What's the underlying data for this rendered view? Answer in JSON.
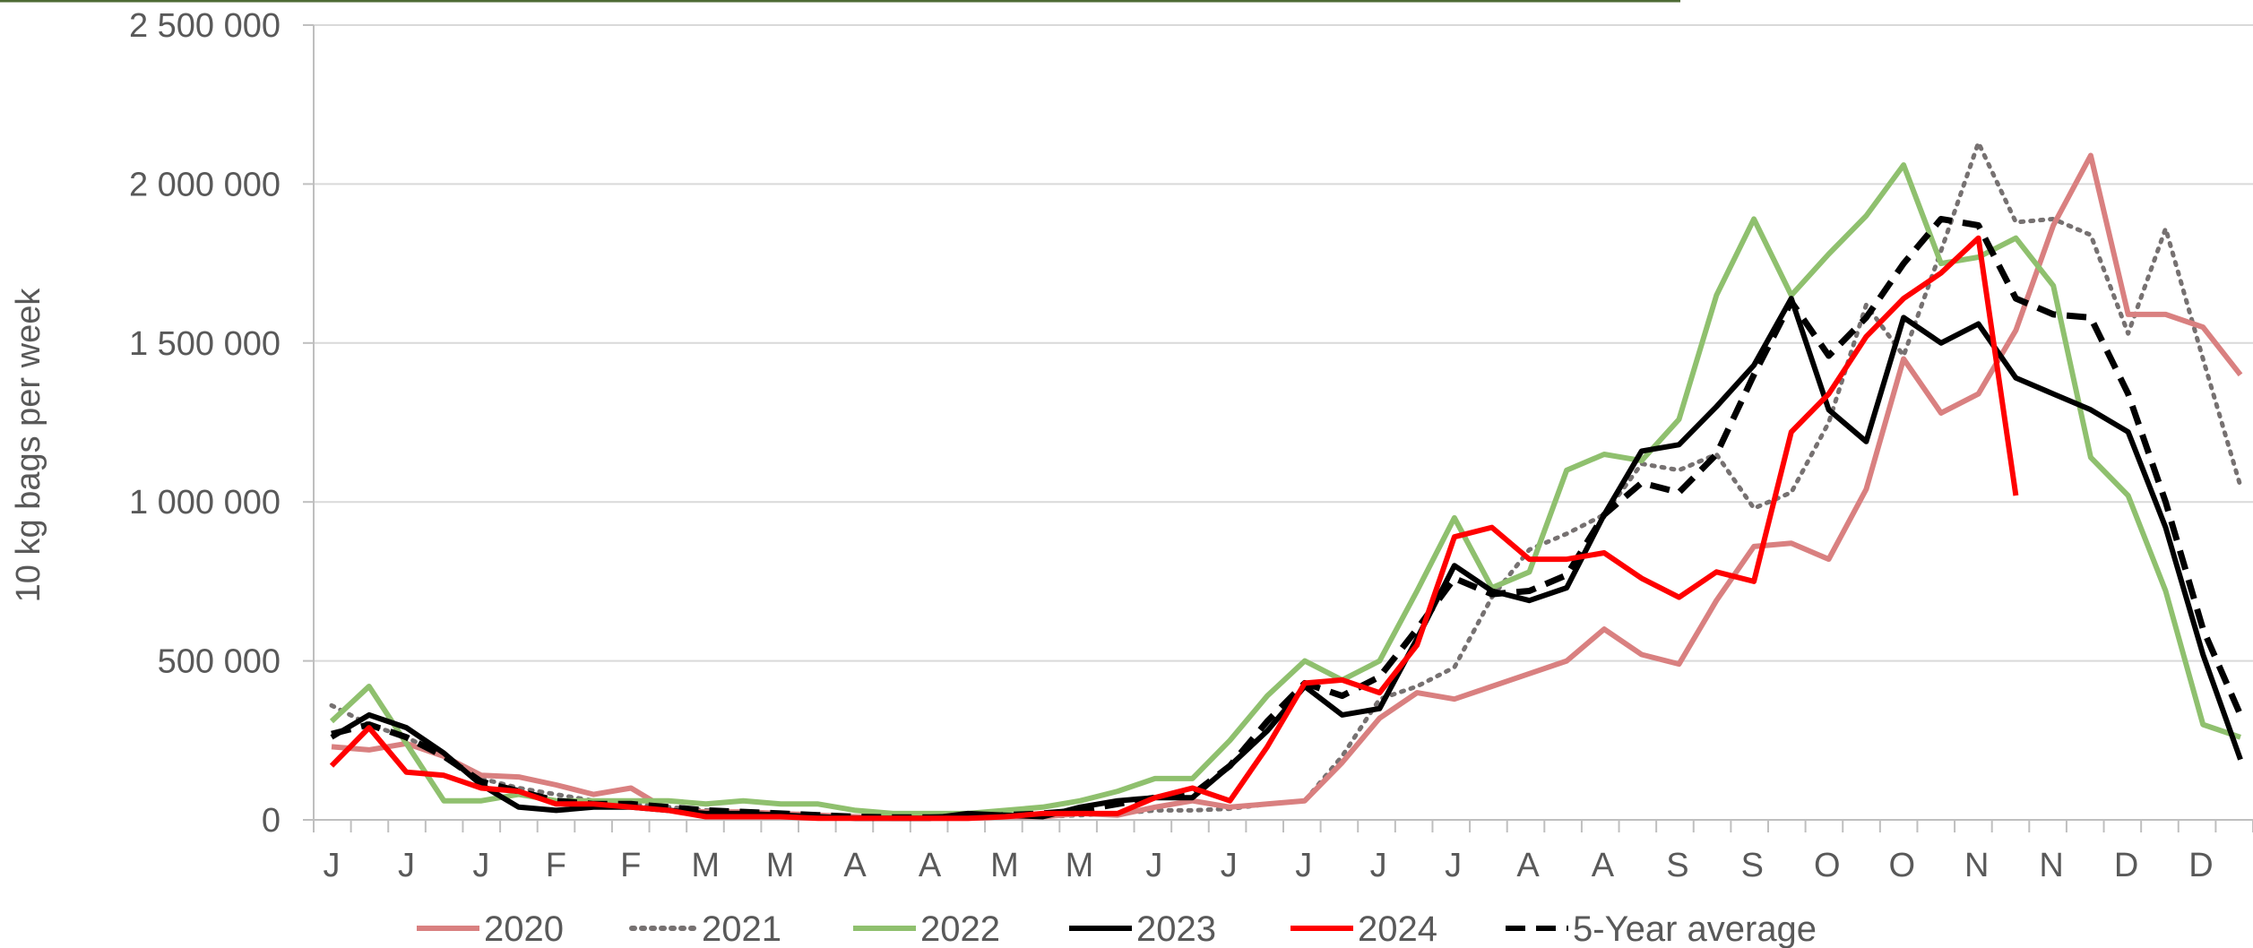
{
  "chart_data": {
    "type": "line",
    "ylabel": "10 kg bags per week",
    "ylim": [
      0,
      2500000
    ],
    "yticks": [
      0,
      500000,
      1000000,
      1500000,
      2000000,
      2500000
    ],
    "ytick_labels": [
      "0",
      "500 000",
      "1 000 000",
      "1 500 000",
      "2 000 000",
      "2 500 000"
    ],
    "month_labels": [
      "J",
      "J",
      "J",
      "F",
      "F",
      "M",
      "M",
      "A",
      "A",
      "M",
      "M",
      "J",
      "J",
      "J",
      "J",
      "J",
      "A",
      "A",
      "S",
      "S",
      "O",
      "O",
      "N",
      "N",
      "D",
      "D"
    ],
    "weeks": 52,
    "grid": true,
    "legend_position": "bottom",
    "series": [
      {
        "name": "2020",
        "color": "#d98080",
        "dash": "solid",
        "values": [
          230000,
          220000,
          240000,
          200000,
          140000,
          135000,
          110000,
          80000,
          100000,
          30000,
          25000,
          25000,
          20000,
          15000,
          10000,
          5000,
          5000,
          5000,
          10000,
          10000,
          20000,
          15000,
          40000,
          60000,
          40000,
          50000,
          60000,
          180000,
          320000,
          400000,
          380000,
          420000,
          460000,
          500000,
          600000,
          520000,
          490000,
          690000,
          860000,
          870000,
          820000,
          1040000,
          1450000,
          1280000,
          1340000,
          1540000,
          1870000,
          2090000,
          1590000,
          1590000,
          1550000,
          1400000
        ]
      },
      {
        "name": "2021",
        "color": "#767171",
        "dash": "dotted",
        "values": [
          360000,
          300000,
          260000,
          200000,
          130000,
          100000,
          80000,
          60000,
          50000,
          40000,
          30000,
          20000,
          20000,
          15000,
          10000,
          5000,
          5000,
          5000,
          10000,
          10000,
          15000,
          20000,
          30000,
          30000,
          35000,
          50000,
          60000,
          200000,
          380000,
          420000,
          480000,
          700000,
          850000,
          900000,
          960000,
          1120000,
          1100000,
          1150000,
          980000,
          1030000,
          1250000,
          1620000,
          1460000,
          1790000,
          2130000,
          1880000,
          1890000,
          1840000,
          1530000,
          1860000,
          1450000,
          1050000
        ]
      },
      {
        "name": "2022",
        "color": "#8fc06e",
        "dash": "solid",
        "values": [
          310000,
          420000,
          240000,
          60000,
          60000,
          80000,
          60000,
          60000,
          60000,
          60000,
          50000,
          60000,
          50000,
          50000,
          30000,
          20000,
          20000,
          20000,
          30000,
          40000,
          60000,
          90000,
          130000,
          130000,
          250000,
          390000,
          500000,
          440000,
          500000,
          720000,
          950000,
          730000,
          780000,
          1100000,
          1150000,
          1130000,
          1260000,
          1650000,
          1890000,
          1650000,
          1780000,
          1900000,
          2060000,
          1750000,
          1770000,
          1830000,
          1680000,
          1140000,
          1020000,
          720000,
          300000,
          260000
        ]
      },
      {
        "name": "2023",
        "color": "#000000",
        "dash": "solid",
        "values": [
          260000,
          330000,
          290000,
          210000,
          110000,
          40000,
          30000,
          40000,
          40000,
          30000,
          20000,
          20000,
          15000,
          10000,
          5000,
          5000,
          5000,
          20000,
          15000,
          10000,
          40000,
          60000,
          70000,
          70000,
          170000,
          280000,
          420000,
          330000,
          350000,
          570000,
          800000,
          720000,
          690000,
          730000,
          960000,
          1160000,
          1180000,
          1300000,
          1430000,
          1640000,
          1290000,
          1190000,
          1580000,
          1500000,
          1560000,
          1390000,
          1340000,
          1290000,
          1220000,
          920000,
          520000,
          190000
        ]
      },
      {
        "name": "2024",
        "color": "#ff0000",
        "dash": "solid",
        "values": [
          170000,
          290000,
          150000,
          140000,
          100000,
          90000,
          50000,
          50000,
          40000,
          30000,
          10000,
          10000,
          10000,
          5000,
          5000,
          5000,
          5000,
          5000,
          10000,
          20000,
          20000,
          20000,
          70000,
          100000,
          60000,
          230000,
          430000,
          440000,
          400000,
          550000,
          890000,
          920000,
          820000,
          820000,
          840000,
          760000,
          700000,
          780000,
          750000,
          1220000,
          1340000,
          1520000,
          1640000,
          1720000,
          1830000,
          1020000
        ]
      },
      {
        "name": "5-Year average",
        "color": "#000000",
        "dash": "dashed",
        "values": [
          270000,
          300000,
          260000,
          200000,
          120000,
          90000,
          60000,
          50000,
          50000,
          40000,
          30000,
          25000,
          20000,
          15000,
          10000,
          8000,
          8000,
          10000,
          15000,
          20000,
          30000,
          50000,
          70000,
          80000,
          170000,
          310000,
          430000,
          390000,
          450000,
          600000,
          760000,
          710000,
          720000,
          770000,
          960000,
          1060000,
          1030000,
          1150000,
          1400000,
          1630000,
          1460000,
          1580000,
          1750000,
          1890000,
          1870000,
          1640000,
          1590000,
          1580000,
          1340000,
          1000000,
          600000,
          330000
        ]
      }
    ]
  }
}
